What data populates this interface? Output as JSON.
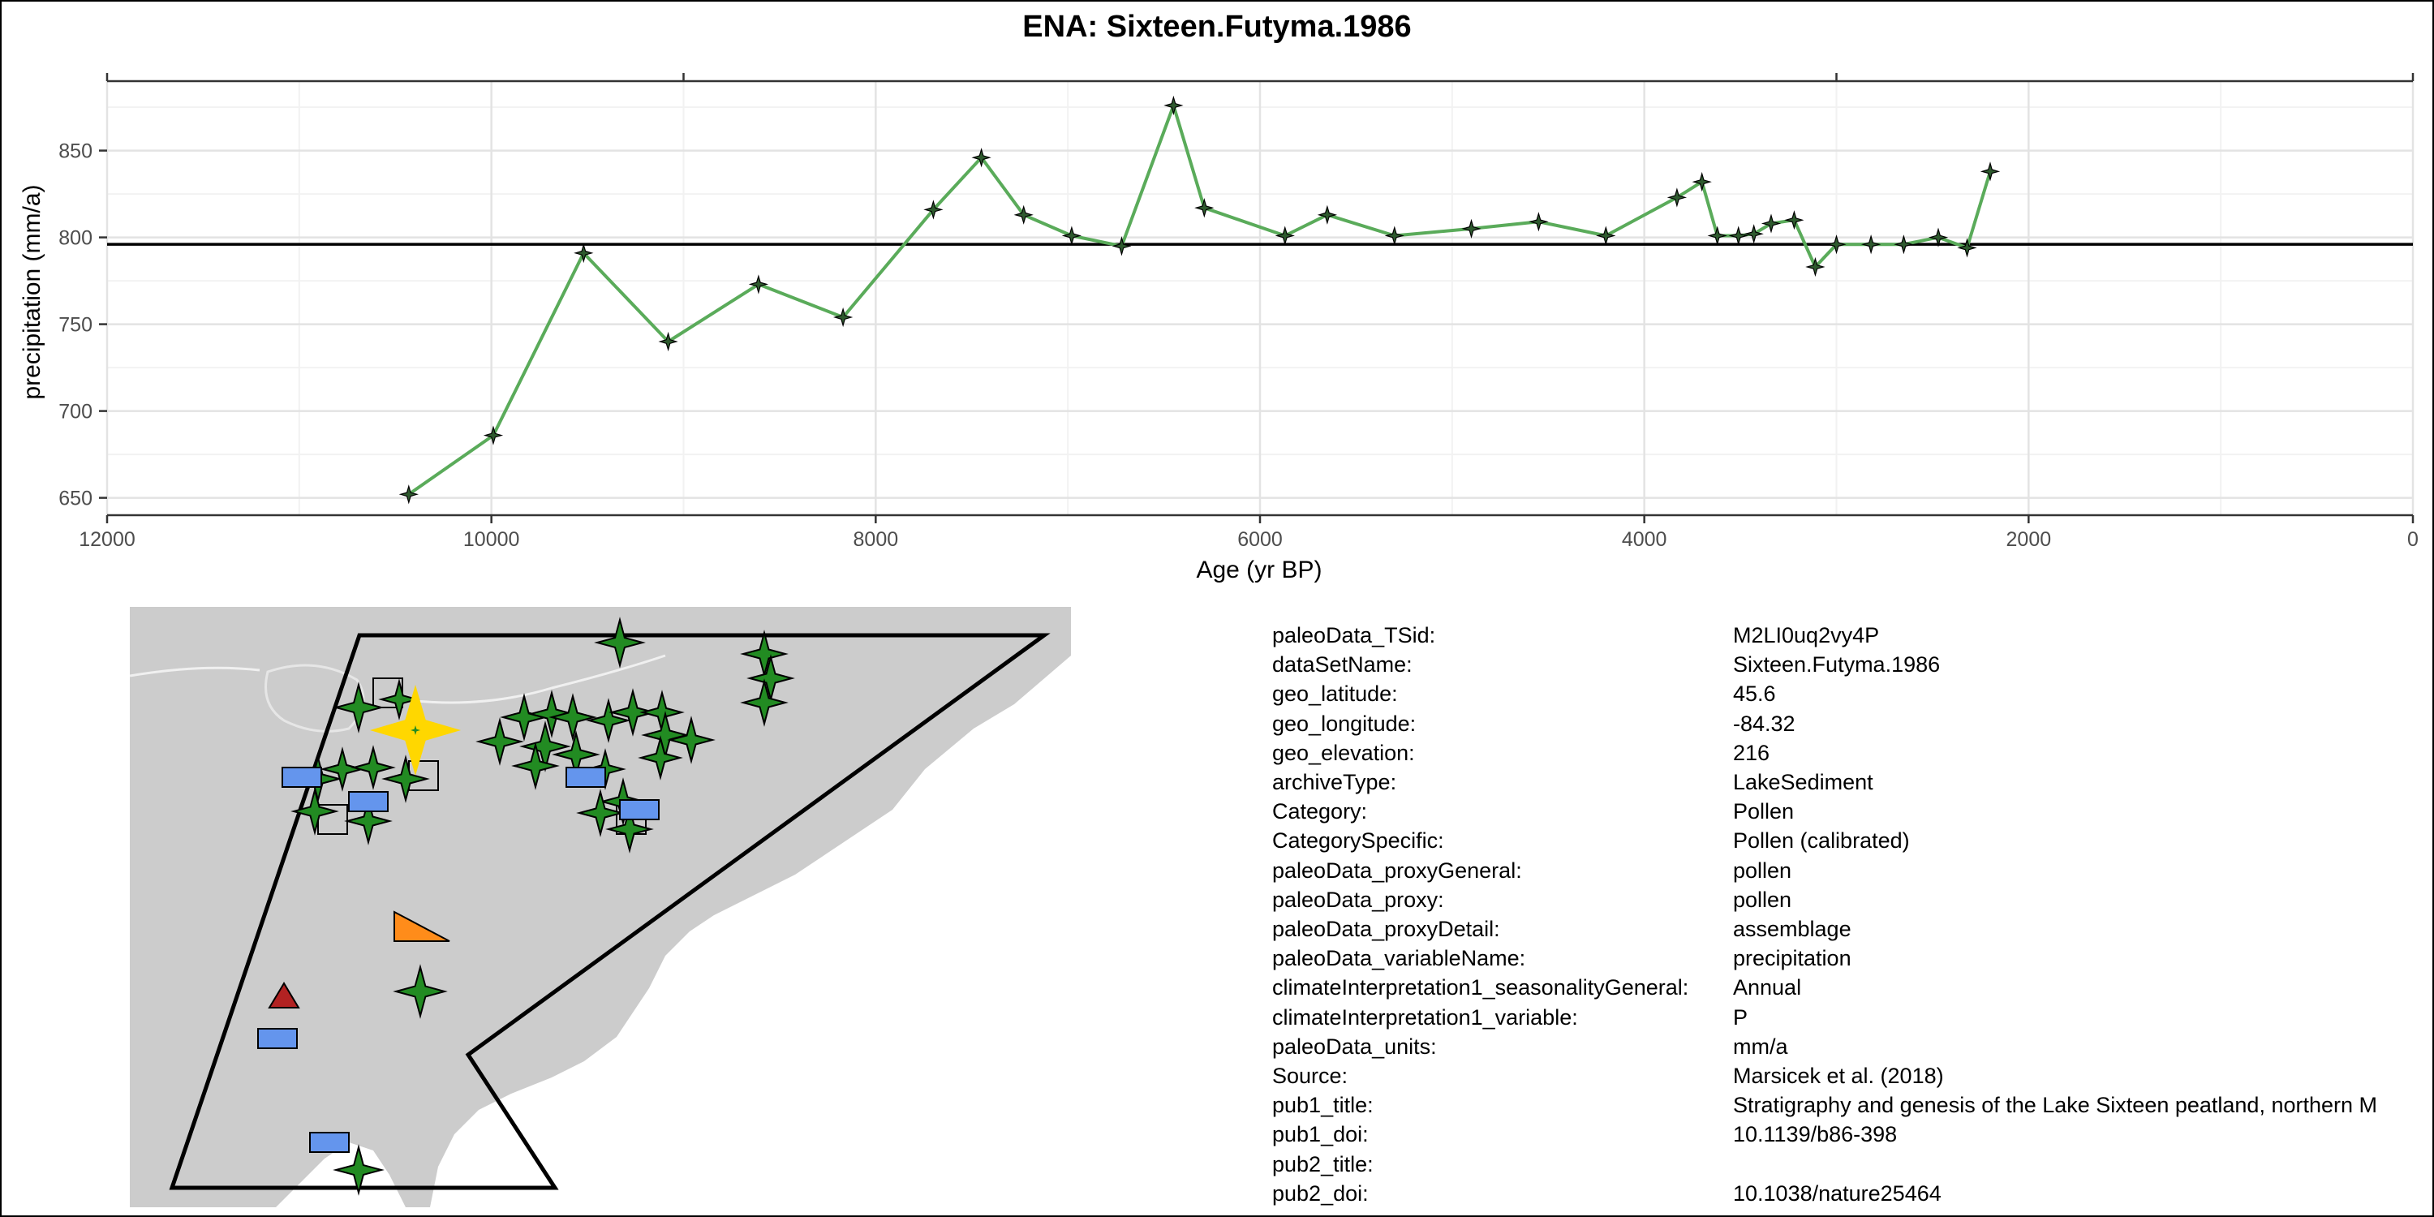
{
  "title": "ENA: Sixteen.Futyma.1986",
  "chart_data": {
    "type": "line",
    "title": "ENA: Sixteen.Futyma.1986",
    "xlabel": "Age (yr BP)",
    "ylabel": "precipitation (mm/a)",
    "xlim": [
      12000,
      0
    ],
    "x_reversed": true,
    "ylim": [
      640,
      890
    ],
    "xticks": [
      12000,
      10000,
      8000,
      6000,
      4000,
      2000,
      0
    ],
    "yticks": [
      650,
      700,
      750,
      800,
      850
    ],
    "grid": true,
    "reference_line": 796,
    "series_color": "#5aab5a",
    "marker_color": "#2e5a2e",
    "x": [
      10430,
      9990,
      9520,
      9080,
      8610,
      8170,
      7700,
      7450,
      7230,
      6980,
      6720,
      6450,
      6290,
      5870,
      5650,
      5300,
      4900,
      4550,
      4200,
      3830,
      3700,
      3620,
      3510,
      3430,
      3340,
      3220,
      3110,
      3000,
      2820,
      2650,
      2470,
      2320,
      2200
    ],
    "y": [
      652,
      686,
      791,
      740,
      773,
      754,
      816,
      846,
      813,
      801,
      795,
      876,
      817,
      801,
      813,
      801,
      805,
      809,
      801,
      823,
      832,
      801,
      801,
      802,
      808,
      810,
      783,
      796,
      796,
      796,
      800,
      794,
      838
    ]
  },
  "map": {
    "colors": {
      "land": "#cccccc",
      "ocean": "#ffffff",
      "star": "#228b22",
      "highlight": "#ffd700",
      "rect": "#6495ed",
      "square": "#cccccc",
      "orange_triangle": "#ff8c1a",
      "red_triangle": "#b22222"
    }
  },
  "metadata": [
    {
      "key": "paleoData_TSid:",
      "value": "M2LI0uq2vy4P"
    },
    {
      "key": "dataSetName:",
      "value": "Sixteen.Futyma.1986"
    },
    {
      "key": "geo_latitude:",
      "value": "45.6"
    },
    {
      "key": "geo_longitude:",
      "value": "-84.32"
    },
    {
      "key": "geo_elevation:",
      "value": "216"
    },
    {
      "key": "archiveType:",
      "value": "LakeSediment"
    },
    {
      "key": "Category:",
      "value": "Pollen"
    },
    {
      "key": "CategorySpecific:",
      "value": "Pollen (calibrated)"
    },
    {
      "key": "paleoData_proxyGeneral:",
      "value": "pollen"
    },
    {
      "key": "paleoData_proxy:",
      "value": "pollen"
    },
    {
      "key": "paleoData_proxyDetail:",
      "value": "assemblage"
    },
    {
      "key": "paleoData_variableName:",
      "value": "precipitation"
    },
    {
      "key": "climateInterpretation1_seasonalityGeneral:",
      "value": "Annual"
    },
    {
      "key": "climateInterpretation1_variable:",
      "value": "P"
    },
    {
      "key": "paleoData_units:",
      "value": "mm/a"
    },
    {
      "key": "Source:",
      "value": "Marsicek et al. (2018)"
    },
    {
      "key": "pub1_title:",
      "value": "Stratigraphy and genesis of the Lake Sixteen peatland, northern M"
    },
    {
      "key": "pub1_doi:",
      "value": "10.1139/b86-398"
    },
    {
      "key": "pub2_title:",
      "value": ""
    },
    {
      "key": "pub2_doi:",
      "value": "10.1038/nature25464"
    }
  ]
}
